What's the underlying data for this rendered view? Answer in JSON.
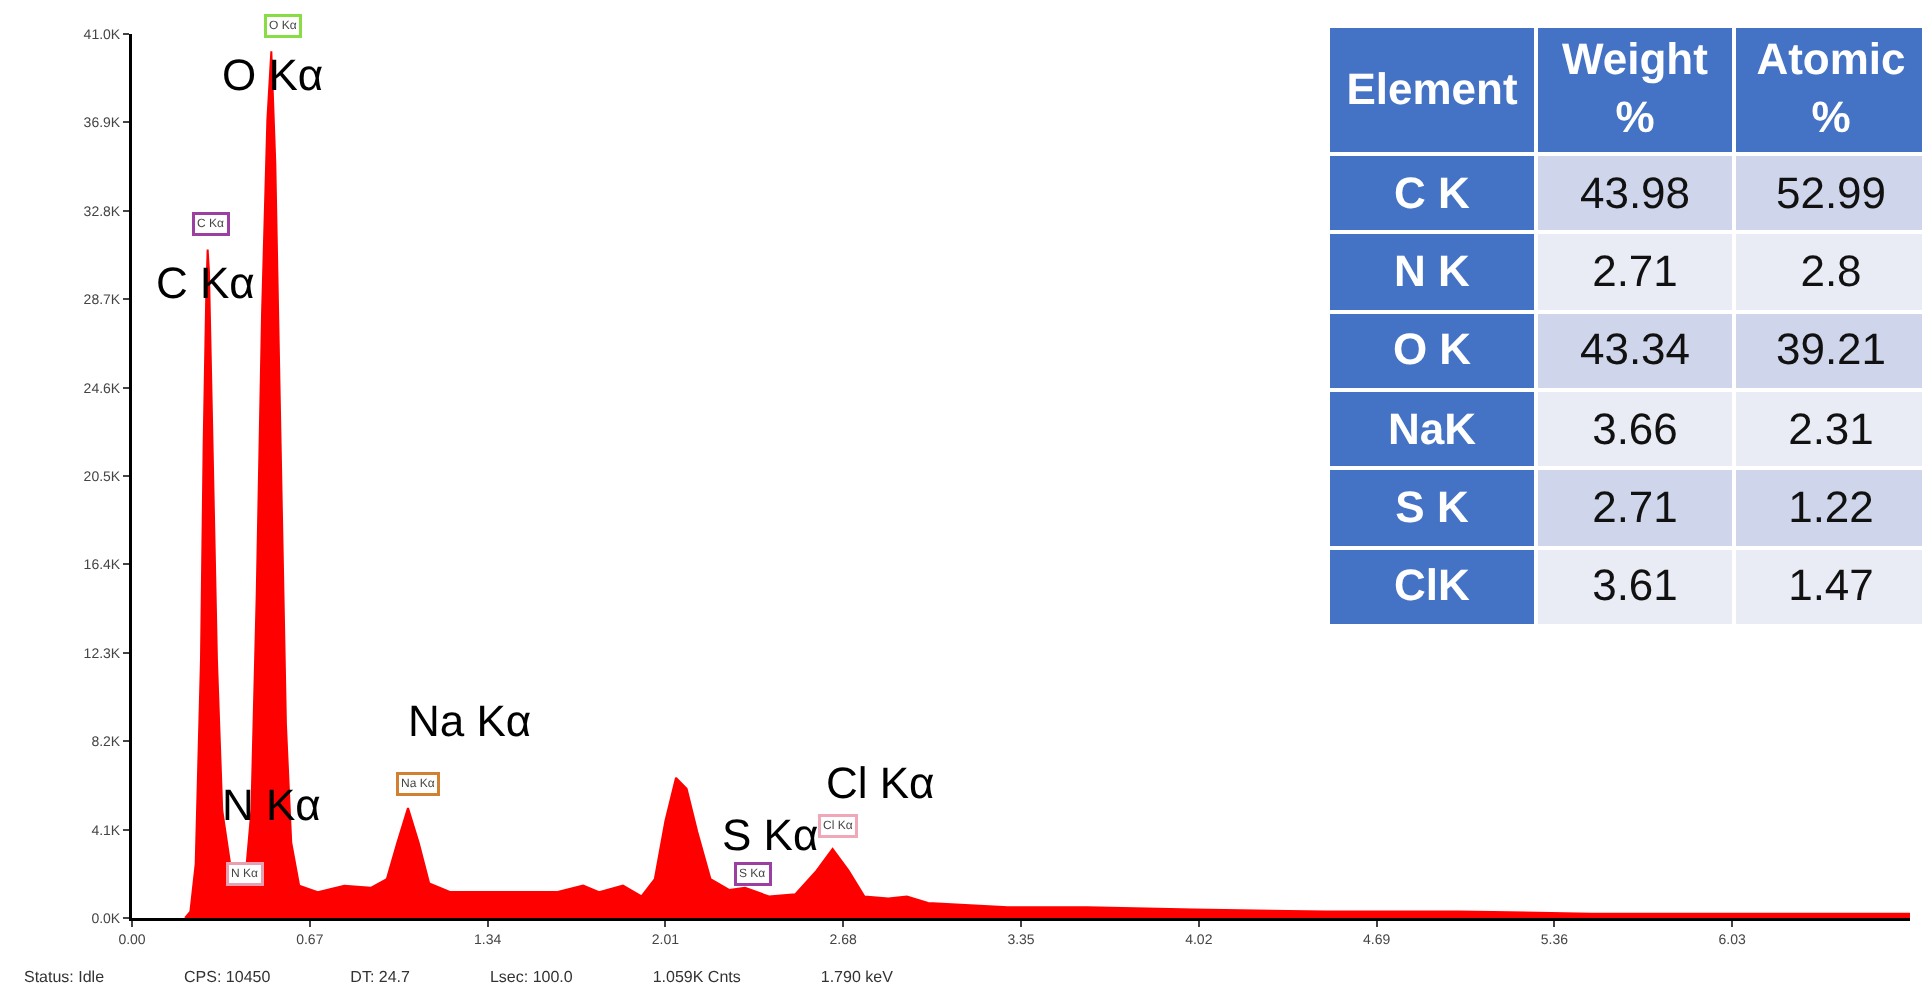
{
  "chart_data": [
    {
      "type": "area",
      "color": "#ff0000",
      "x": [
        0.2,
        0.22,
        0.24,
        0.26,
        0.27,
        0.28,
        0.285,
        0.29,
        0.3,
        0.32,
        0.34,
        0.37,
        0.4,
        0.43,
        0.45,
        0.47,
        0.49,
        0.51,
        0.525,
        0.54,
        0.56,
        0.58,
        0.6,
        0.63,
        0.7,
        0.8,
        0.9,
        0.96,
        1.0,
        1.04,
        1.08,
        1.12,
        1.2,
        1.4,
        1.6,
        1.7,
        1.76,
        1.85,
        1.92,
        1.97,
        2.01,
        2.05,
        2.09,
        2.13,
        2.18,
        2.25,
        2.31,
        2.4,
        2.5,
        2.58,
        2.64,
        2.7,
        2.76,
        2.85,
        2.92,
        3.0,
        3.3,
        3.6,
        4.0,
        4.5,
        5.0,
        5.5,
        6.0,
        6.7
      ],
      "values": [
        0,
        300,
        2500,
        12000,
        22000,
        29000,
        31000,
        30000,
        24000,
        12000,
        5000,
        2500,
        1800,
        2200,
        5000,
        15000,
        28000,
        37000,
        40200,
        35000,
        22000,
        9000,
        3500,
        1500,
        1200,
        1500,
        1400,
        1800,
        3500,
        5100,
        3500,
        1600,
        1200,
        1200,
        1200,
        1500,
        1200,
        1500,
        1000,
        1800,
        4500,
        6500,
        6000,
        4000,
        1800,
        1300,
        1400,
        1000,
        1100,
        2200,
        3200,
        2200,
        1000,
        900,
        1000,
        700,
        500,
        500,
        400,
        300,
        300,
        200,
        200,
        200
      ],
      "xlim": [
        0,
        6.7
      ],
      "xticks": [
        {
          "value": 0,
          "label": "0.00"
        },
        0.67,
        1.34,
        2.01,
        2.68,
        3.35,
        4.02,
        4.69,
        5.36,
        6.03
      ],
      "ylim": [
        0,
        41000
      ],
      "yticks": [
        {
          "value": 0,
          "label": "0.0K"
        },
        {
          "value": 4100,
          "label": "4.1K"
        },
        {
          "value": 8200,
          "label": "8.2K"
        },
        {
          "value": 12300,
          "label": "12.3K"
        },
        {
          "value": 16400,
          "label": "16.4K"
        },
        {
          "value": 20500,
          "label": "20.5K"
        },
        {
          "value": 24600,
          "label": "24.6K"
        },
        {
          "value": 28700,
          "label": "28.7K"
        },
        {
          "value": 32800,
          "label": "32.8K"
        },
        {
          "value": 36900,
          "label": "36.9K"
        },
        {
          "value": 41000,
          "label": "41.0K"
        }
      ],
      "annotations": [
        {
          "text": "C Kα",
          "x": 0.285,
          "y": 31000
        },
        {
          "text": "N Kα",
          "x": 0.4,
          "y": 1800
        },
        {
          "text": "O Kα",
          "x": 0.525,
          "y": 40200
        },
        {
          "text": "Na Kα",
          "x": 1.04,
          "y": 5100
        },
        {
          "text": "S Kα",
          "x": 2.31,
          "y": 1400
        },
        {
          "text": "Cl Kα",
          "x": 2.64,
          "y": 3200
        },
        {
          "text": "C Kα",
          "x": 0.285,
          "y": 31000
        },
        {
          "text": "N Kα",
          "x": 0.4,
          "y": 1800
        },
        {
          "text": "O Kα",
          "x": 0.525,
          "y": 40200
        },
        {
          "text": "Na Kα",
          "x": 1.04,
          "y": 5100
        },
        {
          "text": "S Kα",
          "x": 2.31,
          "y": 1400
        },
        {
          "text": "Cl Kα",
          "x": 2.64,
          "y": 3200
        },
        "Status: Idle",
        "CPS: 10450",
        "DT: 24.7",
        "Lsec: 100.0",
        "1.059K Cnts",
        "1.790 keV"
      ]
    },
    {
      "type": "other",
      "annotations": [
        "Element",
        "Weight %",
        "Atomic %",
        "C K",
        "43.98",
        "52.99",
        "N K",
        "2.71",
        "2.8",
        "O K",
        "43.34",
        "39.21",
        "NaK",
        "3.66",
        "2.31",
        "S K",
        "2.71",
        "1.22",
        "ClK",
        "3.61",
        "1.47"
      ]
    }
  ]
}
